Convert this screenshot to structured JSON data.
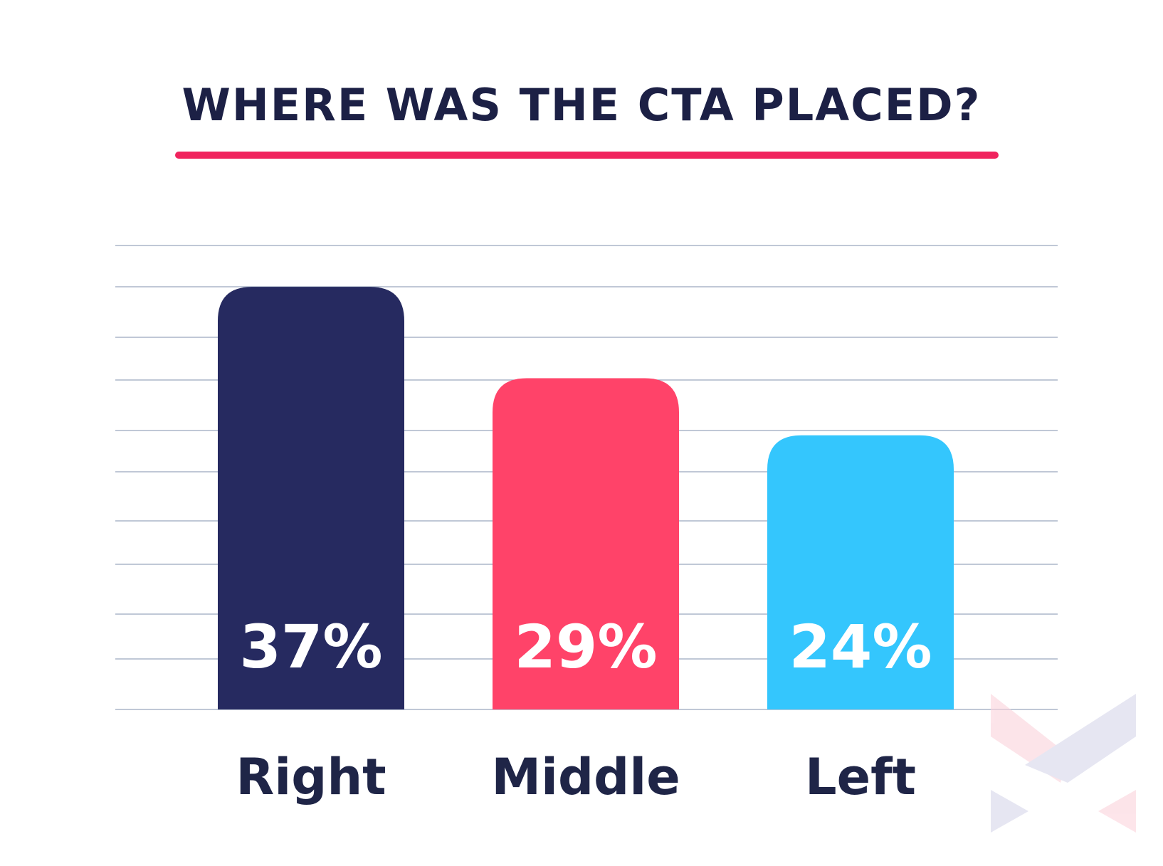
{
  "chart_data": {
    "type": "bar",
    "title": "WHERE WAS THE CTA PLACED?",
    "categories": [
      "Right",
      "Middle",
      "Left"
    ],
    "values": [
      37,
      29,
      24
    ],
    "value_labels": [
      "37%",
      "29%",
      "24%"
    ],
    "colors": [
      "#262a60",
      "#ff4369",
      "#34c6fd"
    ],
    "ylim": [
      0,
      40
    ]
  }
}
